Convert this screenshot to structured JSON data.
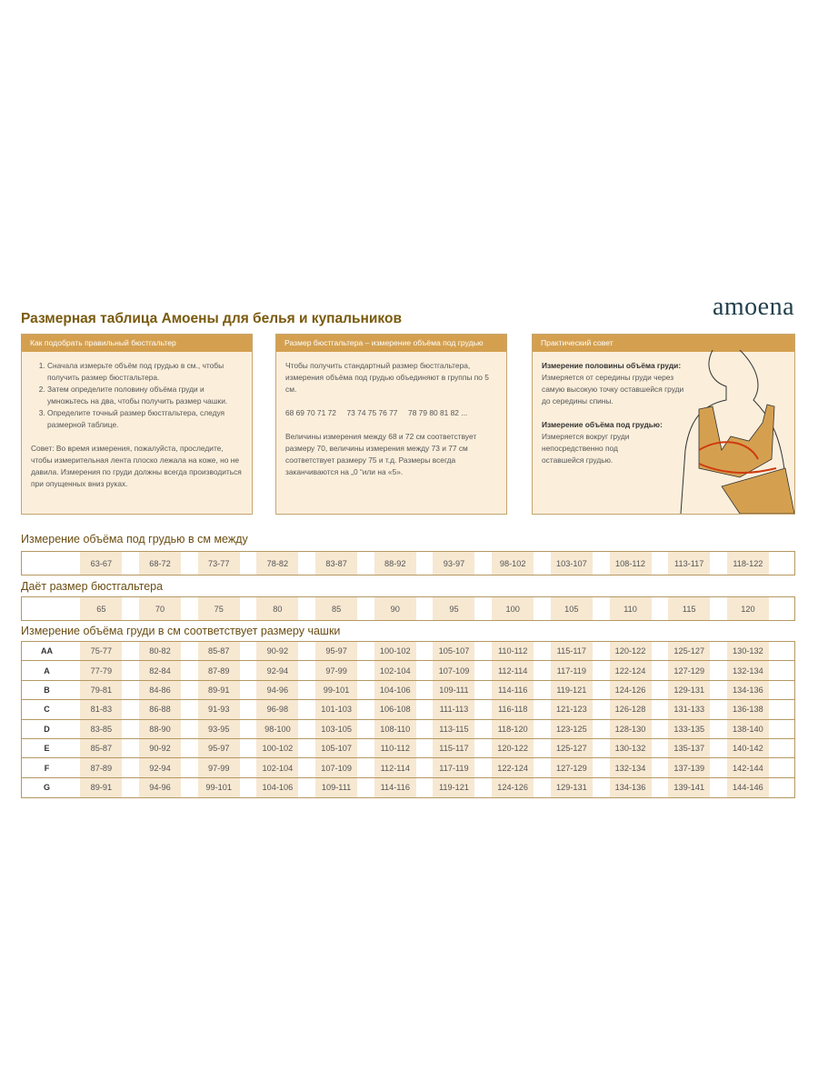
{
  "title": "Размерная таблица Амоены для белья и купальников",
  "logo": "amoena",
  "boxes": {
    "howto": {
      "header": "Как подобрать правильный бюстгальтер",
      "steps": [
        "Сначала измерьте объём под грудью в см., чтобы получить размер бюстгальтера.",
        "Затем определите половину объёма груди и умножьтесь на два, чтобы получить размер чашки.",
        "Определите точный размер бюстгальтера, следуя размерной таблице."
      ],
      "tip": "Совет: Во время измерения, пожалуйста, проследите, чтобы измерительная лента плоско лежала на коже, но не давила. Измерения по груди должны всегда производиться при опущенных вниз руках."
    },
    "size": {
      "header": "Размер бюстгальтера – измерение объёма под грудью",
      "p1": "Чтобы получить стандартный размер бюстгальтера, измерения объёма под грудью объединяют в группы по 5 см.",
      "p2": "68 69 70 71 72     73 74 75 76 77     78 79 80 81 82 ...",
      "p3": "Величины измерения между 68 и 72 см соответствует размеру 70, величины измерения между 73 и 77 см соответствует размеру 75 и т.д. Размеры всегда заканчиваются на „0 “или на «5»."
    },
    "tip": {
      "header": "Практический совет",
      "h1": "Измерение половины объёма груди:",
      "t1": "Измеряется от середины груди через самую высокую точку оставшейся груди до середины спины.",
      "h2": "Измерение объёма под грудью:",
      "t2": "Измеряется вокруг груди непосредственно под оставшейся грудью."
    }
  },
  "underbust": {
    "label": "Измерение объёма под грудью в см между",
    "values": [
      "63-67",
      "68-72",
      "73-77",
      "78-82",
      "83-87",
      "88-92",
      "93-97",
      "98-102",
      "103-107",
      "108-112",
      "113-117",
      "118-122"
    ]
  },
  "bandsize": {
    "label": "Даёт размер бюстгальтера",
    "values": [
      "65",
      "70",
      "75",
      "80",
      "85",
      "90",
      "95",
      "100",
      "105",
      "110",
      "115",
      "120"
    ]
  },
  "cup": {
    "label": "Измерение объёма груди в см соответствует размеру чашки",
    "rows": [
      {
        "cup": "AA",
        "values": [
          "75-77",
          "80-82",
          "85-87",
          "90-92",
          "95-97",
          "100-102",
          "105-107",
          "110-112",
          "115-117",
          "120-122",
          "125-127",
          "130-132"
        ]
      },
      {
        "cup": "A",
        "values": [
          "77-79",
          "82-84",
          "87-89",
          "92-94",
          "97-99",
          "102-104",
          "107-109",
          "112-114",
          "117-119",
          "122-124",
          "127-129",
          "132-134"
        ]
      },
      {
        "cup": "B",
        "values": [
          "79-81",
          "84-86",
          "89-91",
          "94-96",
          "99-101",
          "104-106",
          "109-111",
          "114-116",
          "119-121",
          "124-126",
          "129-131",
          "134-136"
        ]
      },
      {
        "cup": "C",
        "values": [
          "81-83",
          "86-88",
          "91-93",
          "96-98",
          "101-103",
          "106-108",
          "111-113",
          "116-118",
          "121-123",
          "126-128",
          "131-133",
          "136-138"
        ]
      },
      {
        "cup": "D",
        "values": [
          "83-85",
          "88-90",
          "93-95",
          "98-100",
          "103-105",
          "108-110",
          "113-115",
          "118-120",
          "123-125",
          "128-130",
          "133-135",
          "138-140"
        ]
      },
      {
        "cup": "E",
        "values": [
          "85-87",
          "90-92",
          "95-97",
          "100-102",
          "105-107",
          "110-112",
          "115-117",
          "120-122",
          "125-127",
          "130-132",
          "135-137",
          "140-142"
        ]
      },
      {
        "cup": "F",
        "values": [
          "87-89",
          "92-94",
          "97-99",
          "102-104",
          "107-109",
          "112-114",
          "117-119",
          "122-124",
          "127-129",
          "132-134",
          "137-139",
          "142-144"
        ]
      },
      {
        "cup": "G",
        "values": [
          "89-91",
          "94-96",
          "99-101",
          "104-106",
          "109-111",
          "114-116",
          "119-121",
          "124-126",
          "129-131",
          "134-136",
          "139-141",
          "144-146"
        ]
      }
    ]
  },
  "colors": {
    "header": "#d4a050",
    "box_bg": "#fbefdc",
    "cell": "#f7e8d2",
    "title": "#7a5a0e",
    "logo": "#22404d"
  }
}
